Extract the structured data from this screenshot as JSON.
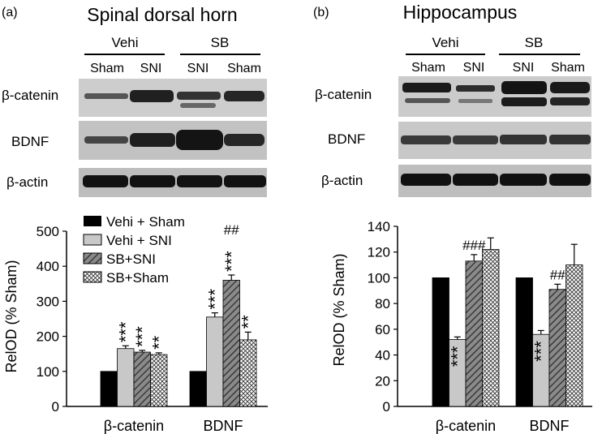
{
  "panels": [
    {
      "letter": "(a)",
      "title": "Spinal dorsal horn",
      "group_labels": [
        "Vehi",
        "SB"
      ],
      "lane_labels": [
        "Sham",
        "SNI",
        "SNI",
        "Sham"
      ],
      "blot_labels": [
        "β-catenin",
        "BDNF",
        "β-actin"
      ]
    },
    {
      "letter": "(b)",
      "title": "Hippocampus",
      "group_labels": [
        "Vehi",
        "SB"
      ],
      "lane_labels": [
        "Sham",
        "SNI",
        "SNI",
        "Sham"
      ],
      "blot_labels": [
        "β-catenin",
        "BDNF",
        "β-actin"
      ]
    }
  ],
  "colors": {
    "vehi_sham": "#000000",
    "vehi_sni": "#c8c8c8",
    "sb_sni": "#6a6a6a",
    "sb_sham": "#ffffff",
    "blot_background": "#c6c6c6",
    "band": "#1c1c1c"
  },
  "chart_data": [
    {
      "type": "bar",
      "ylabel": "RelOD (% Sham)",
      "ylim": [
        0,
        500
      ],
      "yticks": [
        "0",
        "100",
        "200",
        "300",
        "400",
        "500"
      ],
      "categories": [
        "β-catenin",
        "BDNF"
      ],
      "legend_position": "top-left",
      "series": [
        {
          "name": "Vehi + Sham",
          "values": [
            100,
            100
          ],
          "errors": [
            0,
            0
          ],
          "annotations": [
            "",
            ""
          ],
          "pattern": "solid-black"
        },
        {
          "name": "Vehi + SNI",
          "values": [
            165,
            255
          ],
          "errors": [
            8,
            12
          ],
          "annotations": [
            "***",
            "***"
          ],
          "pattern": "solid-gray"
        },
        {
          "name": "SB+SNI",
          "values": [
            155,
            360
          ],
          "errors": [
            5,
            15
          ],
          "annotations": [
            "***",
            "***"
          ],
          "pattern": "diagonal-hatch"
        },
        {
          "name": "SB+Sham",
          "values": [
            148,
            190
          ],
          "errors": [
            5,
            22
          ],
          "annotations": [
            "**",
            "**"
          ],
          "pattern": "crosshatch"
        }
      ],
      "hash_annotations": [
        {
          "category": 1,
          "series": 2,
          "text": "##"
        }
      ]
    },
    {
      "type": "bar",
      "ylabel": "RelOD (% Sham)",
      "ylim": [
        0,
        140
      ],
      "yticks": [
        "0",
        "20",
        "40",
        "60",
        "80",
        "100",
        "120",
        "140"
      ],
      "categories": [
        "β-catenin",
        "BDNF"
      ],
      "series": [
        {
          "name": "Vehi + Sham",
          "values": [
            100,
            100
          ],
          "errors": [
            0,
            0
          ],
          "annotations": [
            "",
            ""
          ],
          "pattern": "solid-black"
        },
        {
          "name": "Vehi + SNI",
          "values": [
            52,
            56
          ],
          "errors": [
            2,
            3
          ],
          "annotations": [
            "***",
            "***"
          ],
          "pattern": "solid-gray"
        },
        {
          "name": "SB+SNI",
          "values": [
            113,
            91
          ],
          "errors": [
            5,
            4
          ],
          "annotations": [
            "",
            ""
          ],
          "pattern": "diagonal-hatch"
        },
        {
          "name": "SB+Sham",
          "values": [
            122,
            110
          ],
          "errors": [
            9,
            16
          ],
          "annotations": [
            "",
            ""
          ],
          "pattern": "crosshatch"
        }
      ],
      "hash_annotations": [
        {
          "category": 0,
          "series": 2,
          "text": "###"
        },
        {
          "category": 1,
          "series": 2,
          "text": "##"
        }
      ]
    }
  ]
}
